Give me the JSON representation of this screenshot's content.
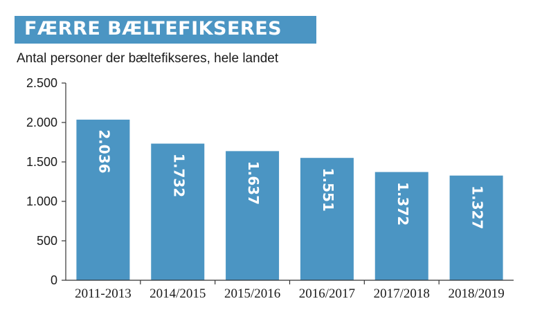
{
  "header": {
    "title": "FÆRRE BÆLTEFIKSERES",
    "subtitle": "Antal personer der bæltefikseres, hele landet"
  },
  "colors": {
    "bar": "#4b95c3",
    "axis": "#333333",
    "banner": "#4b95c3"
  },
  "chart_data": {
    "type": "bar",
    "title": "FÆRRE BÆLTEFIKSERES",
    "subtitle": "Antal personer der bæltefikseres, hele landet",
    "xlabel": "",
    "ylabel": "",
    "categories": [
      "2011-2013",
      "2014/2015",
      "2015/2016",
      "2016/2017",
      "2017/2018",
      "2018/2019"
    ],
    "values": [
      2036,
      1732,
      1637,
      1551,
      1372,
      1327
    ],
    "value_labels": [
      "2.036",
      "1.732",
      "1.637",
      "1.551",
      "1.372",
      "1.327"
    ],
    "ylim": [
      0,
      2500
    ],
    "yticks": [
      0,
      500,
      1000,
      1500,
      2000,
      2500
    ],
    "ytick_labels": [
      "0",
      "500",
      "1.000",
      "1.500",
      "2.000",
      "2.500"
    ],
    "grid": false,
    "legend": "none"
  }
}
